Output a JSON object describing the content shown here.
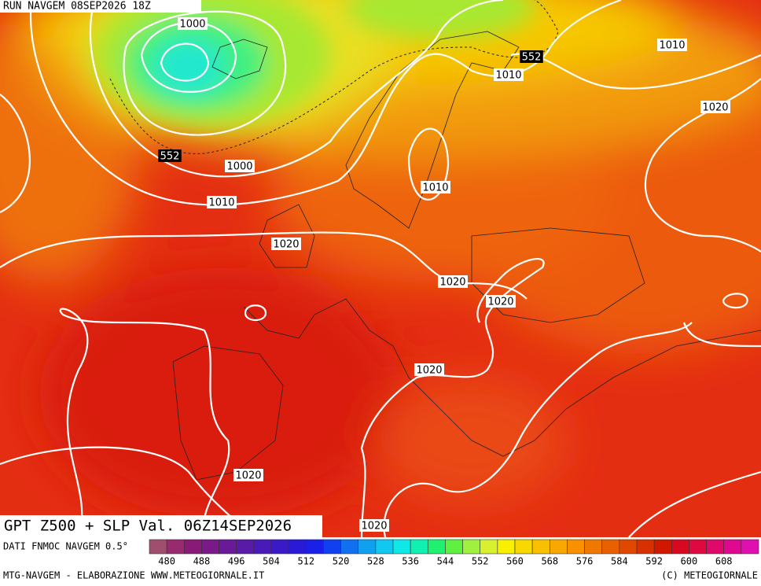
{
  "header": {
    "run": "RUN NAVGEM 08SEP2026 18Z"
  },
  "map": {
    "contour_labels": [
      "1000",
      "552",
      "1010",
      "1010",
      "1020",
      "552",
      "1000",
      "1010",
      "1010",
      "1020",
      "1020",
      "1020",
      "1020",
      "1020",
      "1020"
    ]
  },
  "caption": "GPT Z500 + SLP Val. 06Z14SEP2026",
  "colorbar": {
    "source": "DATI FNMOC NAVGEM 0.5°",
    "ticks": [
      480,
      488,
      496,
      504,
      512,
      520,
      528,
      536,
      544,
      552,
      560,
      568,
      576,
      584,
      592,
      600,
      608
    ],
    "colors": [
      "#a04e6e",
      "#9a2a6e",
      "#8a1a78",
      "#7a1a88",
      "#6a1a98",
      "#5a1aa8",
      "#4a1ab8",
      "#3a1ac8",
      "#2a1ad8",
      "#1a20e8",
      "#1040f0",
      "#1070f0",
      "#10a0f0",
      "#10c8f0",
      "#10e8e8",
      "#10f0b0",
      "#20f070",
      "#60f040",
      "#a0f040",
      "#d8f030",
      "#f8f000",
      "#f8d800",
      "#f8c000",
      "#f8a800",
      "#f89000",
      "#f07800",
      "#e86000",
      "#e04800",
      "#d83000",
      "#d01800",
      "#d80820",
      "#e00840",
      "#e00868",
      "#e00890",
      "#e010b0"
    ]
  },
  "footer": {
    "left": "MTG-NAVGEM - ELABORAZIONE WWW.METEOGIORNALE.IT",
    "right": "(C) METEOGIORNALE"
  }
}
